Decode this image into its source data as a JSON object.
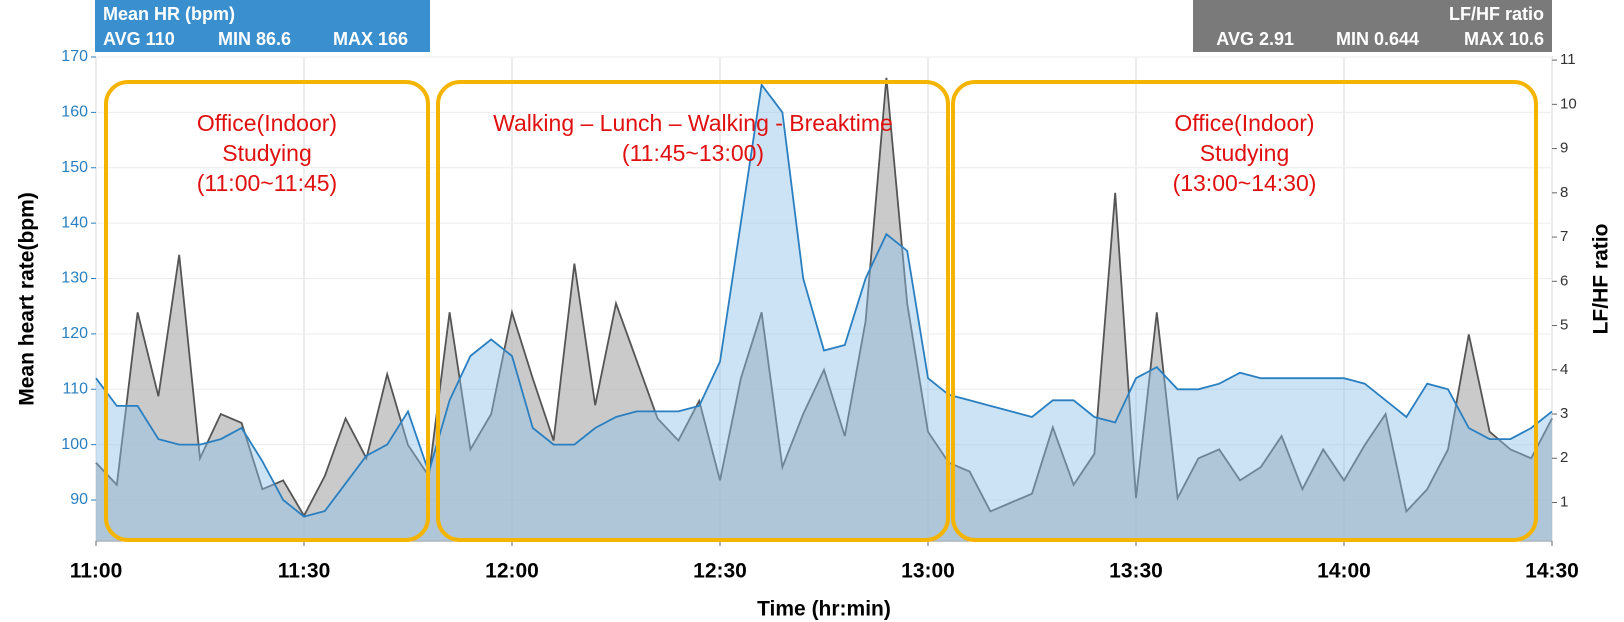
{
  "chart_data": {
    "type": "area",
    "headers": [
      {
        "title": "Mean HR (bpm)",
        "stats": [
          "AVG 110",
          "MIN 86.6",
          "MAX 166"
        ],
        "color": "#3a8fcf"
      },
      {
        "title": "LF/HF ratio",
        "stats": [
          "AVG 2.91",
          "MIN 0.644",
          "MAX 10.6"
        ],
        "color": "#7a7a7a"
      }
    ],
    "xlabel": "Time (hr:min)",
    "ylabel": "Mean heart rate(bpm)",
    "y2label": "LF/HF ratio",
    "x": [
      "11:00",
      "11:03",
      "11:06",
      "11:09",
      "11:12",
      "11:15",
      "11:18",
      "11:21",
      "11:24",
      "11:27",
      "11:30",
      "11:33",
      "11:36",
      "11:39",
      "11:42",
      "11:45",
      "11:48",
      "11:51",
      "11:54",
      "11:57",
      "12:00",
      "12:03",
      "12:06",
      "12:09",
      "12:12",
      "12:15",
      "12:18",
      "12:21",
      "12:24",
      "12:27",
      "12:30",
      "12:33",
      "12:36",
      "12:39",
      "12:42",
      "12:45",
      "12:48",
      "12:51",
      "12:54",
      "12:57",
      "13:00",
      "13:03",
      "13:06",
      "13:09",
      "13:12",
      "13:15",
      "13:18",
      "13:21",
      "13:24",
      "13:27",
      "13:30",
      "13:33",
      "13:36",
      "13:39",
      "13:42",
      "13:45",
      "13:48",
      "13:51",
      "13:54",
      "13:57",
      "14:00",
      "14:03",
      "14:06",
      "14:09",
      "14:12",
      "14:15",
      "14:18",
      "14:21",
      "14:24",
      "14:27",
      "14:30"
    ],
    "series": [
      {
        "name": "LF/HF ratio",
        "axis": "y2",
        "color": "#555555",
        "fill": "#b8b8b8",
        "values": [
          1.9,
          1.4,
          5.3,
          3.4,
          6.6,
          2.0,
          3.0,
          2.8,
          1.3,
          1.5,
          0.7,
          1.6,
          2.9,
          2.0,
          3.9,
          2.3,
          1.6,
          5.3,
          2.2,
          3.0,
          5.3,
          3.8,
          2.4,
          6.4,
          3.2,
          5.5,
          4.2,
          2.9,
          2.4,
          3.3,
          1.5,
          3.8,
          5.3,
          1.8,
          3.0,
          4.0,
          2.5,
          5.1,
          10.6,
          5.5,
          2.6,
          1.9,
          1.7,
          0.8,
          1.0,
          1.2,
          2.7,
          1.4,
          2.1,
          8.0,
          1.1,
          5.3,
          1.1,
          2.0,
          2.2,
          1.5,
          1.8,
          2.5,
          1.3,
          2.2,
          1.5,
          2.3,
          3.0,
          0.8,
          1.3,
          2.2,
          4.8,
          2.6,
          2.2,
          2.0,
          2.9
        ]
      },
      {
        "name": "Mean HR (bpm)",
        "color": "#2a7fc0",
        "fill": "#8cc0e8",
        "values": [
          112,
          107,
          107,
          101,
          100,
          100,
          101,
          103,
          97,
          90,
          87,
          88,
          93,
          98,
          100,
          106,
          95,
          108,
          116,
          119,
          116,
          103,
          100,
          100,
          103,
          105,
          106,
          106,
          106,
          107,
          115,
          140,
          165,
          160,
          130,
          117,
          118,
          130,
          138,
          135,
          112,
          109,
          108,
          107,
          106,
          105,
          108,
          108,
          105,
          104,
          112,
          114,
          110,
          110,
          111,
          113,
          112,
          112,
          112,
          112,
          112,
          111,
          108,
          105,
          111,
          110,
          103,
          101,
          101,
          103,
          106
        ]
      }
    ],
    "xlim": [
      "11:00",
      "14:30"
    ],
    "xticks": [
      "11:00",
      "11:30",
      "12:00",
      "12:30",
      "13:00",
      "13:30",
      "14:00",
      "14:30"
    ],
    "ylim": [
      82.6,
      170
    ],
    "yticks": [
      90,
      100,
      110,
      120,
      130,
      140,
      150,
      160,
      170
    ],
    "y2lim": [
      0.13,
      11.07
    ],
    "y2ticks": [
      1,
      2,
      3,
      4,
      5,
      6,
      7,
      8,
      9,
      10,
      11
    ],
    "grid": true,
    "annotations": [
      {
        "lines": [
          "Office(Indoor)",
          "Studying",
          "(11:00~11:45)"
        ]
      },
      {
        "lines": [
          "Walking – Lunch – Walking - Breaktime",
          "(11:45~13:00)"
        ]
      },
      {
        "lines": [
          "Office(Indoor)",
          "Studying",
          "(13:00~14:30)"
        ]
      }
    ]
  }
}
